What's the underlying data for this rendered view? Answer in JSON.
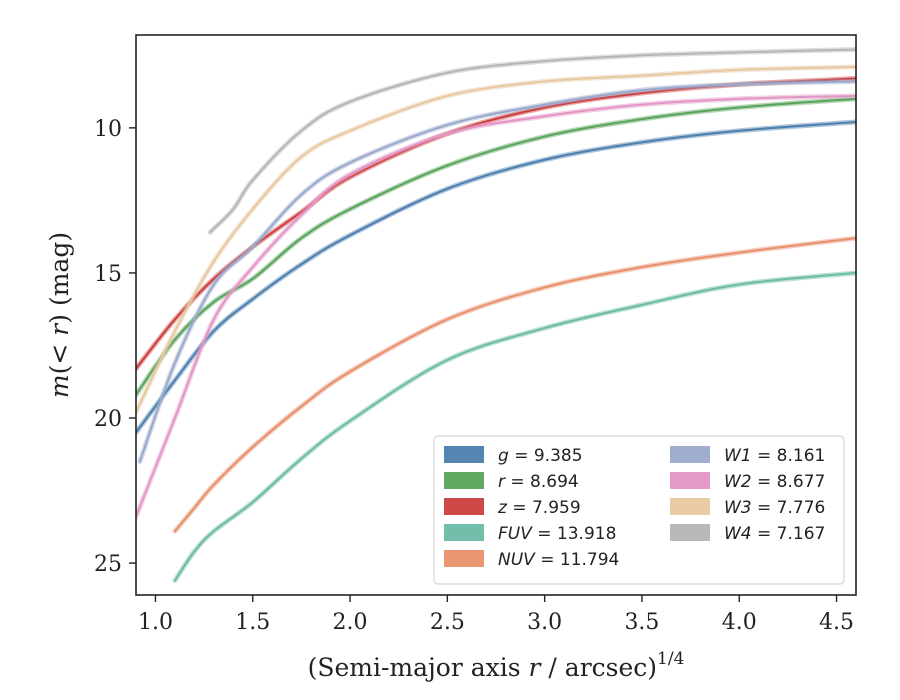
{
  "chart_data": {
    "type": "line",
    "title": "",
    "xlabel": "(Semi-major axis r / arcsec)",
    "xlabel_exponent": "1/4",
    "ylabel": "m(< r) (mag)",
    "xlim": [
      0.9,
      4.6
    ],
    "ylim": [
      26.1,
      6.8
    ],
    "y_inverted": true,
    "xticks": [
      1.0,
      1.5,
      2.0,
      2.5,
      3.0,
      3.5,
      4.0,
      4.5
    ],
    "xtick_labels": [
      "1.0",
      "1.5",
      "2.0",
      "2.5",
      "3.0",
      "3.5",
      "4.0",
      "4.5"
    ],
    "yticks": [
      10,
      15,
      20,
      25
    ],
    "ytick_labels": [
      "10",
      "15",
      "20",
      "25"
    ],
    "grid": false,
    "legend_position": "lower-right",
    "legend_columns": 2,
    "series": [
      {
        "name": "g = 9.385",
        "label_var": "g",
        "label_val": "9.385",
        "color": "#4c7fae",
        "x": [
          0.9,
          1.1,
          1.3,
          1.5,
          1.75,
          2.0,
          2.5,
          3.0,
          3.5,
          4.0,
          4.6
        ],
        "y": [
          20.5,
          18.7,
          17.0,
          15.9,
          14.7,
          13.7,
          12.1,
          11.1,
          10.5,
          10.1,
          9.8
        ]
      },
      {
        "name": "r = 8.694",
        "label_var": "r",
        "label_val": "8.694",
        "color": "#58a45a",
        "x": [
          0.9,
          1.1,
          1.3,
          1.5,
          1.75,
          2.0,
          2.5,
          3.0,
          3.5,
          4.0,
          4.6
        ],
        "y": [
          19.2,
          17.3,
          16.0,
          15.2,
          13.8,
          12.8,
          11.3,
          10.3,
          9.7,
          9.3,
          9.0
        ]
      },
      {
        "name": "z = 7.959",
        "label_var": "z",
        "label_val": "7.959",
        "color": "#cc3e3e",
        "x": [
          0.9,
          1.1,
          1.3,
          1.5,
          1.75,
          2.0,
          2.5,
          3.0,
          3.5,
          4.0,
          4.6
        ],
        "y": [
          18.3,
          16.6,
          15.2,
          14.1,
          12.9,
          11.7,
          10.2,
          9.3,
          8.8,
          8.5,
          8.3
        ]
      },
      {
        "name": "FUV = 13.918",
        "label_var": "FUV",
        "label_val": "13.918",
        "color": "#6bbba5",
        "x": [
          1.1,
          1.2,
          1.3,
          1.5,
          1.75,
          2.0,
          2.5,
          3.0,
          3.5,
          4.0,
          4.6
        ],
        "y": [
          25.6,
          24.6,
          23.9,
          22.9,
          21.4,
          20.1,
          18.0,
          16.9,
          16.1,
          15.4,
          15.0
        ]
      },
      {
        "name": "NUV = 11.794",
        "label_var": "NUV",
        "label_val": "11.794",
        "color": "#e8906c",
        "x": [
          1.1,
          1.2,
          1.3,
          1.5,
          1.75,
          2.0,
          2.5,
          3.0,
          3.5,
          4.0,
          4.6
        ],
        "y": [
          23.9,
          23.1,
          22.3,
          21.0,
          19.6,
          18.4,
          16.6,
          15.5,
          14.8,
          14.3,
          13.8
        ]
      },
      {
        "name": "W1 = 8.161",
        "label_var": "W1",
        "label_val": "8.161",
        "color": "#9aa9cb",
        "x": [
          0.92,
          1.1,
          1.3,
          1.5,
          1.75,
          2.0,
          2.5,
          3.0,
          3.5,
          4.0,
          4.6
        ],
        "y": [
          21.5,
          18.1,
          15.4,
          14.1,
          12.3,
          11.2,
          9.9,
          9.2,
          8.7,
          8.5,
          8.4
        ]
      },
      {
        "name": "W2 = 8.677",
        "label_var": "W2",
        "label_val": "8.677",
        "color": "#e396c5",
        "x": [
          0.9,
          1.1,
          1.3,
          1.5,
          1.75,
          2.0,
          2.5,
          3.0,
          3.5,
          4.0,
          4.6
        ],
        "y": [
          23.4,
          20.0,
          16.6,
          14.8,
          13.0,
          11.6,
          10.2,
          9.6,
          9.2,
          9.0,
          8.9
        ]
      },
      {
        "name": "W3 = 7.776",
        "label_var": "W3",
        "label_val": "7.776",
        "color": "#e7c8a0",
        "x": [
          0.9,
          1.1,
          1.3,
          1.5,
          1.75,
          2.0,
          2.5,
          3.0,
          3.5,
          4.0,
          4.6
        ],
        "y": [
          19.8,
          17.0,
          14.6,
          12.8,
          11.0,
          10.1,
          8.9,
          8.4,
          8.2,
          8.0,
          7.9
        ]
      },
      {
        "name": "W4 = 7.167",
        "label_var": "W4",
        "label_val": "7.167",
        "color": "#b5b5b5",
        "x": [
          1.28,
          1.4,
          1.5,
          1.75,
          2.0,
          2.5,
          3.0,
          3.5,
          4.0,
          4.6
        ],
        "y": [
          13.6,
          12.8,
          11.8,
          10.1,
          9.1,
          8.1,
          7.7,
          7.5,
          7.4,
          7.3
        ]
      }
    ]
  }
}
